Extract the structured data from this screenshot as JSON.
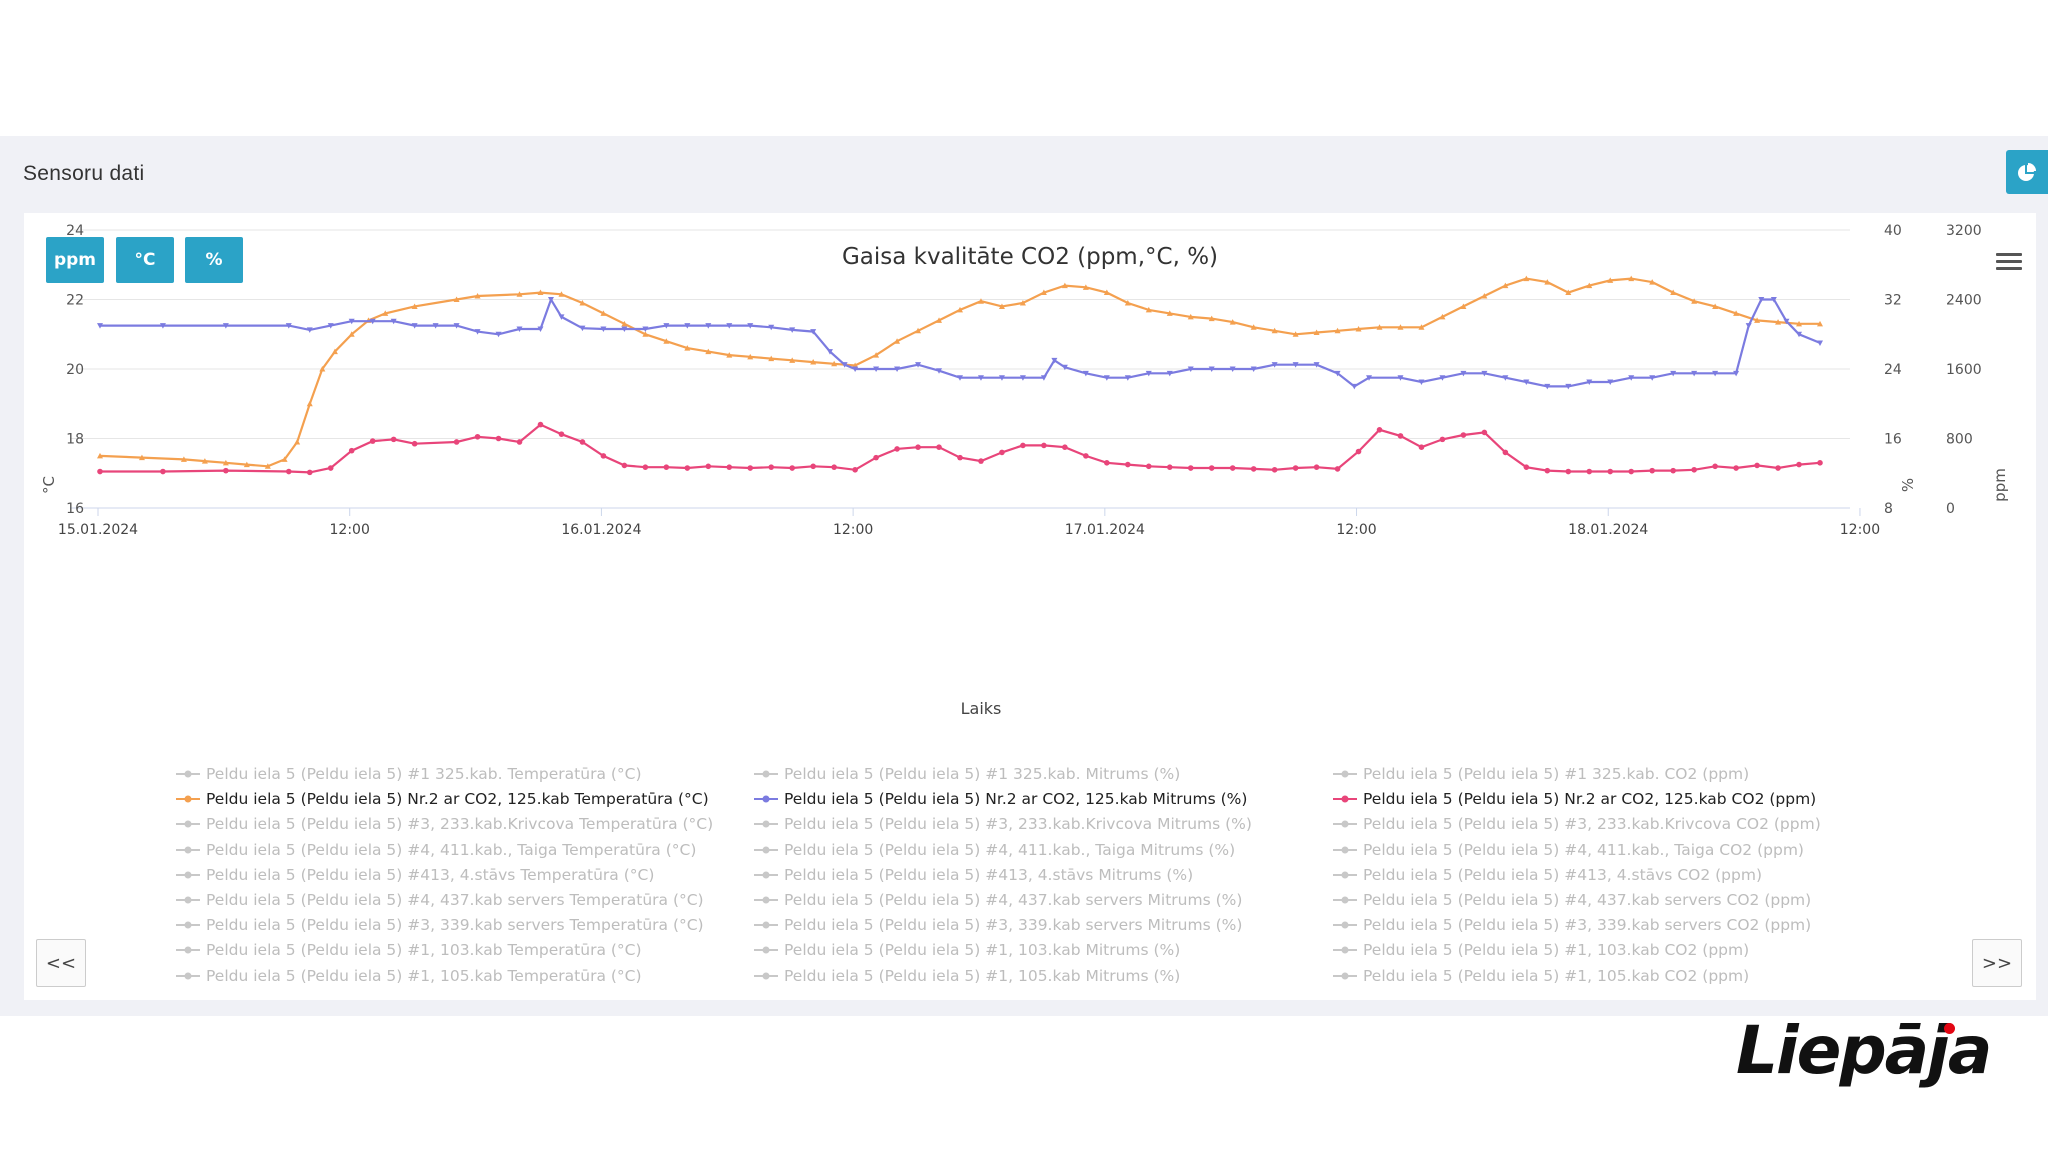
{
  "panel": {
    "title": "Sensoru dati"
  },
  "unit_buttons": [
    "ppm",
    "°C",
    "%"
  ],
  "nav": {
    "prev": "<<",
    "next": ">>"
  },
  "logo": {
    "text": "Liepāja",
    "dot_color": "#e30613"
  },
  "colors": {
    "accent": "#2ba3c7",
    "temp": "#f4a04f",
    "humidity": "#7b7be0",
    "co2": "#e8457a",
    "inactive": "#c8c8c8"
  },
  "chart_data": {
    "type": "line",
    "title": "Gaisa kvalitāte CO2 (ppm,°C, %)",
    "xlabel": "Laiks",
    "x_ticks": [
      "15.01.2024",
      "12:00",
      "16.01.2024",
      "12:00",
      "17.01.2024",
      "12:00",
      "18.01.2024",
      "12:00"
    ],
    "x_range_hours": [
      0,
      82
    ],
    "axes": {
      "temp": {
        "label": "°C",
        "ticks": [
          "16",
          "18",
          "20",
          "22",
          "24"
        ],
        "range": [
          16,
          24
        ]
      },
      "humidity": {
        "label": "%",
        "ticks": [
          "8",
          "16",
          "24",
          "32",
          "40"
        ],
        "range": [
          8,
          40
        ]
      },
      "co2": {
        "label": "ppm",
        "ticks": [
          "0",
          "800",
          "1600",
          "2400",
          "3200"
        ],
        "range": [
          0,
          3200
        ]
      }
    },
    "grid": true,
    "series": [
      {
        "name": "Peldu iela 5 (Peldu iela 5) Nr.2 ar CO2, 125.kab Temperatūra (°C)",
        "axis": "temp",
        "points": [
          [
            0,
            17.5
          ],
          [
            2,
            17.45
          ],
          [
            4,
            17.4
          ],
          [
            5,
            17.35
          ],
          [
            6,
            17.3
          ],
          [
            7,
            17.25
          ],
          [
            8,
            17.2
          ],
          [
            8.8,
            17.4
          ],
          [
            9.4,
            17.9
          ],
          [
            10,
            19.0
          ],
          [
            10.6,
            20.0
          ],
          [
            11.2,
            20.5
          ],
          [
            12,
            21.0
          ],
          [
            12.8,
            21.4
          ],
          [
            13.6,
            21.6
          ],
          [
            15,
            21.8
          ],
          [
            17,
            22.0
          ],
          [
            18,
            22.1
          ],
          [
            20,
            22.15
          ],
          [
            21,
            22.2
          ],
          [
            22,
            22.15
          ],
          [
            23,
            21.9
          ],
          [
            24,
            21.6
          ],
          [
            25,
            21.3
          ],
          [
            26,
            21.0
          ],
          [
            27,
            20.8
          ],
          [
            28,
            20.6
          ],
          [
            29,
            20.5
          ],
          [
            30,
            20.4
          ],
          [
            31,
            20.35
          ],
          [
            32,
            20.3
          ],
          [
            33,
            20.25
          ],
          [
            34,
            20.2
          ],
          [
            35,
            20.15
          ],
          [
            36,
            20.1
          ],
          [
            37,
            20.4
          ],
          [
            38,
            20.8
          ],
          [
            39,
            21.1
          ],
          [
            40,
            21.4
          ],
          [
            41,
            21.7
          ],
          [
            42,
            21.95
          ],
          [
            43,
            21.8
          ],
          [
            44,
            21.9
          ],
          [
            45,
            22.2
          ],
          [
            46,
            22.4
          ],
          [
            47,
            22.35
          ],
          [
            48,
            22.2
          ],
          [
            49,
            21.9
          ],
          [
            50,
            21.7
          ],
          [
            51,
            21.6
          ],
          [
            52,
            21.5
          ],
          [
            53,
            21.45
          ],
          [
            54,
            21.35
          ],
          [
            55,
            21.2
          ],
          [
            56,
            21.1
          ],
          [
            57,
            21.0
          ],
          [
            58,
            21.05
          ],
          [
            59,
            21.1
          ],
          [
            60,
            21.15
          ],
          [
            61,
            21.2
          ],
          [
            62,
            21.2
          ],
          [
            63,
            21.2
          ],
          [
            64,
            21.5
          ],
          [
            65,
            21.8
          ],
          [
            66,
            22.1
          ],
          [
            67,
            22.4
          ],
          [
            68,
            22.6
          ],
          [
            69,
            22.5
          ],
          [
            70,
            22.2
          ],
          [
            71,
            22.4
          ],
          [
            72,
            22.55
          ],
          [
            73,
            22.6
          ],
          [
            74,
            22.5
          ],
          [
            75,
            22.2
          ],
          [
            76,
            21.95
          ],
          [
            77,
            21.8
          ],
          [
            78,
            21.6
          ],
          [
            79,
            21.4
          ],
          [
            80,
            21.35
          ],
          [
            81,
            21.3
          ],
          [
            82,
            21.3
          ]
        ]
      },
      {
        "name": "Peldu iela 5 (Peldu iela 5) Nr.2 ar CO2, 125.kab Mitrums (%)",
        "axis": "humidity",
        "points": [
          [
            0,
            29.0
          ],
          [
            3,
            29.0
          ],
          [
            6,
            29.0
          ],
          [
            9,
            29.0
          ],
          [
            10,
            28.5
          ],
          [
            11,
            29.0
          ],
          [
            12,
            29.5
          ],
          [
            13,
            29.5
          ],
          [
            14,
            29.5
          ],
          [
            15,
            29.0
          ],
          [
            16,
            29.0
          ],
          [
            17,
            29.0
          ],
          [
            18,
            28.3
          ],
          [
            19,
            28.0
          ],
          [
            20,
            28.6
          ],
          [
            21,
            28.6
          ],
          [
            21.5,
            32.0
          ],
          [
            22,
            30.0
          ],
          [
            23,
            28.7
          ],
          [
            24,
            28.6
          ],
          [
            25,
            28.6
          ],
          [
            26,
            28.6
          ],
          [
            27,
            29.0
          ],
          [
            28,
            29.0
          ],
          [
            29,
            29.0
          ],
          [
            30,
            29.0
          ],
          [
            31,
            29.0
          ],
          [
            32,
            28.8
          ],
          [
            33,
            28.5
          ],
          [
            34,
            28.3
          ],
          [
            34.8,
            26.0
          ],
          [
            35.5,
            24.5
          ],
          [
            36,
            24.0
          ],
          [
            37,
            24.0
          ],
          [
            38,
            24.0
          ],
          [
            39,
            24.5
          ],
          [
            40,
            23.8
          ],
          [
            41,
            23.0
          ],
          [
            42,
            23.0
          ],
          [
            43,
            23.0
          ],
          [
            44,
            23.0
          ],
          [
            45,
            23.0
          ],
          [
            45.5,
            25.0
          ],
          [
            46,
            24.2
          ],
          [
            47,
            23.5
          ],
          [
            48,
            23.0
          ],
          [
            49,
            23.0
          ],
          [
            50,
            23.5
          ],
          [
            51,
            23.5
          ],
          [
            52,
            24.0
          ],
          [
            53,
            24.0
          ],
          [
            54,
            24.0
          ],
          [
            55,
            24.0
          ],
          [
            56,
            24.5
          ],
          [
            57,
            24.5
          ],
          [
            58,
            24.5
          ],
          [
            59,
            23.5
          ],
          [
            59.8,
            22.0
          ],
          [
            60.5,
            23.0
          ],
          [
            62,
            23.0
          ],
          [
            63,
            22.5
          ],
          [
            64,
            23.0
          ],
          [
            65,
            23.5
          ],
          [
            66,
            23.5
          ],
          [
            67,
            23.0
          ],
          [
            68,
            22.5
          ],
          [
            69,
            22.0
          ],
          [
            70,
            22.0
          ],
          [
            71,
            22.5
          ],
          [
            72,
            22.5
          ],
          [
            73,
            23.0
          ],
          [
            74,
            23.0
          ],
          [
            75,
            23.5
          ],
          [
            76,
            23.5
          ],
          [
            77,
            23.5
          ],
          [
            78,
            23.5
          ],
          [
            78.6,
            29.0
          ],
          [
            79.2,
            32.0
          ],
          [
            79.8,
            32.0
          ],
          [
            80.4,
            29.5
          ],
          [
            81,
            28.0
          ],
          [
            82,
            27.0
          ]
        ]
      },
      {
        "name": "Peldu iela 5 (Peldu iela 5) Nr.2 ar CO2, 125.kab CO2 (ppm)",
        "axis": "co2",
        "points": [
          [
            0,
            420
          ],
          [
            3,
            420
          ],
          [
            6,
            430
          ],
          [
            9,
            420
          ],
          [
            10,
            410
          ],
          [
            11,
            460
          ],
          [
            12,
            660
          ],
          [
            13,
            770
          ],
          [
            14,
            790
          ],
          [
            15,
            740
          ],
          [
            17,
            760
          ],
          [
            18,
            820
          ],
          [
            19,
            800
          ],
          [
            20,
            760
          ],
          [
            21,
            960
          ],
          [
            22,
            850
          ],
          [
            23,
            760
          ],
          [
            24,
            600
          ],
          [
            25,
            490
          ],
          [
            26,
            470
          ],
          [
            27,
            470
          ],
          [
            28,
            460
          ],
          [
            29,
            480
          ],
          [
            30,
            470
          ],
          [
            31,
            460
          ],
          [
            32,
            470
          ],
          [
            33,
            460
          ],
          [
            34,
            480
          ],
          [
            35,
            470
          ],
          [
            36,
            440
          ],
          [
            37,
            580
          ],
          [
            38,
            680
          ],
          [
            39,
            700
          ],
          [
            40,
            700
          ],
          [
            41,
            580
          ],
          [
            42,
            540
          ],
          [
            43,
            640
          ],
          [
            44,
            720
          ],
          [
            45,
            720
          ],
          [
            46,
            700
          ],
          [
            47,
            600
          ],
          [
            48,
            520
          ],
          [
            49,
            500
          ],
          [
            50,
            480
          ],
          [
            51,
            470
          ],
          [
            52,
            460
          ],
          [
            53,
            460
          ],
          [
            54,
            460
          ],
          [
            55,
            450
          ],
          [
            56,
            440
          ],
          [
            57,
            460
          ],
          [
            58,
            470
          ],
          [
            59,
            450
          ],
          [
            60,
            650
          ],
          [
            61,
            900
          ],
          [
            62,
            830
          ],
          [
            63,
            700
          ],
          [
            64,
            790
          ],
          [
            65,
            840
          ],
          [
            66,
            870
          ],
          [
            67,
            640
          ],
          [
            68,
            470
          ],
          [
            69,
            430
          ],
          [
            70,
            420
          ],
          [
            71,
            420
          ],
          [
            72,
            420
          ],
          [
            73,
            420
          ],
          [
            74,
            430
          ],
          [
            75,
            430
          ],
          [
            76,
            440
          ],
          [
            77,
            480
          ],
          [
            78,
            460
          ],
          [
            79,
            490
          ],
          [
            80,
            460
          ],
          [
            81,
            500
          ],
          [
            82,
            520
          ]
        ]
      }
    ],
    "legend": [
      [
        "Peldu iela 5 (Peldu iela 5) #1 325.kab. Temperatūra (°C)",
        "Peldu iela 5 (Peldu iela 5) #1 325.kab. Mitrums (%)",
        "Peldu iela 5 (Peldu iela 5) #1 325.kab. CO2 (ppm)"
      ],
      [
        "Peldu iela 5 (Peldu iela 5) Nr.2 ar CO2, 125.kab Temperatūra (°C)",
        "Peldu iela 5 (Peldu iela 5) Nr.2 ar CO2, 125.kab Mitrums (%)",
        "Peldu iela 5 (Peldu iela 5) Nr.2 ar CO2, 125.kab CO2 (ppm)"
      ],
      [
        "Peldu iela 5 (Peldu iela 5) #3, 233.kab.Krivcova Temperatūra (°C)",
        "Peldu iela 5 (Peldu iela 5) #3, 233.kab.Krivcova Mitrums (%)",
        "Peldu iela 5 (Peldu iela 5) #3, 233.kab.Krivcova CO2 (ppm)"
      ],
      [
        "Peldu iela 5 (Peldu iela 5) #4, 411.kab., Taiga Temperatūra (°C)",
        "Peldu iela 5 (Peldu iela 5) #4, 411.kab., Taiga Mitrums (%)",
        "Peldu iela 5 (Peldu iela 5) #4, 411.kab., Taiga CO2 (ppm)"
      ],
      [
        "Peldu iela 5 (Peldu iela 5) #413, 4.stāvs Temperatūra (°C)",
        "Peldu iela 5 (Peldu iela 5) #413, 4.stāvs Mitrums (%)",
        "Peldu iela 5 (Peldu iela 5) #413, 4.stāvs CO2 (ppm)"
      ],
      [
        "Peldu iela 5 (Peldu iela 5) #4, 437.kab servers Temperatūra (°C)",
        "Peldu iela 5 (Peldu iela 5) #4, 437.kab servers Mitrums (%)",
        "Peldu iela 5 (Peldu iela 5) #4, 437.kab servers CO2 (ppm)"
      ],
      [
        "Peldu iela 5 (Peldu iela 5) #3, 339.kab servers Temperatūra (°C)",
        "Peldu iela 5 (Peldu iela 5) #3, 339.kab servers Mitrums (%)",
        "Peldu iela 5 (Peldu iela 5) #3, 339.kab servers CO2 (ppm)"
      ],
      [
        "Peldu iela 5 (Peldu iela 5) #1, 103.kab Temperatūra (°C)",
        "Peldu iela 5 (Peldu iela 5) #1, 103.kab Mitrums (%)",
        "Peldu iela 5 (Peldu iela 5) #1, 103.kab CO2 (ppm)"
      ],
      [
        "Peldu iela 5 (Peldu iela 5) #1, 105.kab Temperatūra (°C)",
        "Peldu iela 5 (Peldu iela 5) #1, 105.kab Mitrums (%)",
        "Peldu iela 5 (Peldu iela 5) #1, 105.kab CO2 (ppm)"
      ]
    ],
    "legend_active_row": 1
  }
}
